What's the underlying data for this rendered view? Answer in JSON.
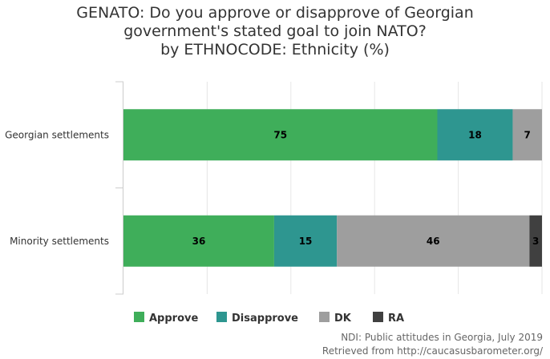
{
  "chart_data": {
    "type": "bar",
    "orientation": "horizontal",
    "stacked": "percent",
    "title_lines": [
      "GENATO: Do you approve or disapprove of Georgian",
      "government's stated goal to join NATO?",
      "by ETHNOCODE: Ethnicity (%)"
    ],
    "categories": [
      "Georgian settlements",
      "Minority settlements"
    ],
    "series": [
      {
        "name": "Approve",
        "color": "#3fae5a",
        "values": [
          75,
          36
        ]
      },
      {
        "name": "Disapprove",
        "color": "#2e9690",
        "values": [
          18,
          15
        ]
      },
      {
        "name": "DK",
        "color": "#9e9e9e",
        "values": [
          7,
          46
        ]
      },
      {
        "name": "RA",
        "color": "#404040",
        "values": [
          0,
          3
        ]
      }
    ],
    "xlim": [
      0,
      100
    ],
    "grid": true,
    "legend_position": "bottom"
  },
  "credits": {
    "line1": "NDI: Public attitudes in Georgia, July 2019",
    "line2": "Retrieved from http://caucasusbarometer.org/"
  }
}
